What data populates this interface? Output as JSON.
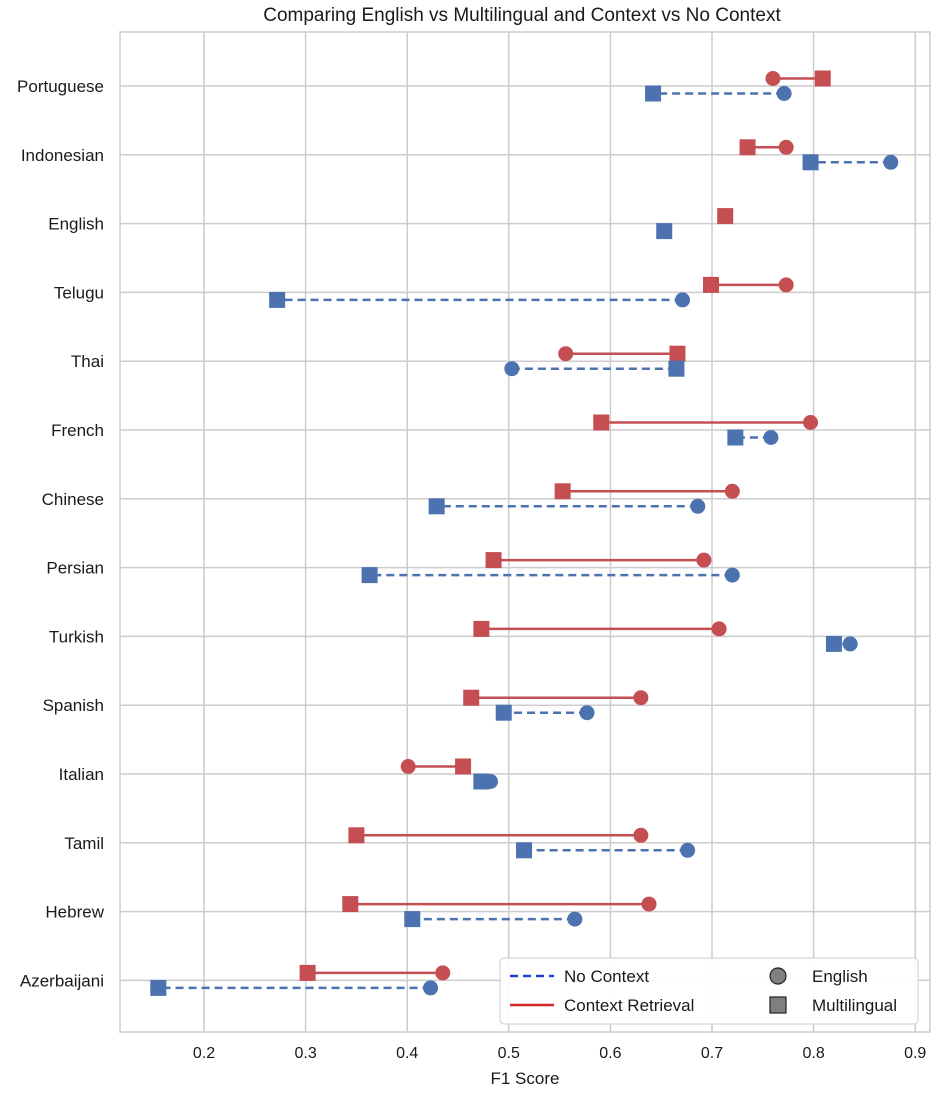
{
  "colors": {
    "context": "#c44e52",
    "no_context": "#4c72b0",
    "legend_no_context_line": "#1f3ed6",
    "legend_context_line": "#d62728",
    "grid": "#cccccc",
    "marker_legend": "#808080"
  },
  "chart_data": {
    "type": "dumbbell",
    "title": "Comparing English vs Multilingual and Context vs No Context",
    "xlabel": "F1 Score",
    "ylabel": "",
    "xlim": [
      0.12,
      0.92
    ],
    "xticks": [
      "0.2",
      "0.3",
      "0.4",
      "0.5",
      "0.6",
      "0.7",
      "0.8",
      "0.9"
    ],
    "grid": true,
    "legend": {
      "position": "bottom-right",
      "no_context": "No Context",
      "context": "Context Retrieval",
      "english": "English",
      "multilingual": "Multilingual"
    },
    "categories": [
      "Portuguese",
      "Indonesian",
      "English",
      "Telugu",
      "Thai",
      "French",
      "Chinese",
      "Persian",
      "Turkish",
      "Spanish",
      "Italian",
      "Tamil",
      "Hebrew",
      "Azerbaijani"
    ],
    "series": [
      {
        "name": "Context Retrieval - English",
        "values": [
          0.76,
          0.773,
          null,
          0.773,
          0.556,
          0.797,
          0.72,
          0.692,
          0.707,
          0.63,
          0.401,
          0.63,
          0.638,
          0.435
        ]
      },
      {
        "name": "Context Retrieval - Multilingual",
        "values": [
          0.809,
          0.735,
          0.713,
          0.699,
          0.666,
          0.591,
          0.553,
          0.485,
          0.473,
          0.463,
          0.455,
          0.35,
          0.344,
          0.302
        ]
      },
      {
        "name": "No Context - English",
        "values": [
          0.771,
          0.876,
          null,
          0.671,
          0.503,
          0.758,
          0.686,
          0.72,
          0.836,
          0.577,
          0.482,
          0.676,
          0.565,
          0.423
        ]
      },
      {
        "name": "No Context - Multilingual",
        "values": [
          0.642,
          0.797,
          0.653,
          0.272,
          0.665,
          0.723,
          0.429,
          0.363,
          0.82,
          0.495,
          0.473,
          0.515,
          0.405,
          0.155
        ]
      }
    ]
  }
}
